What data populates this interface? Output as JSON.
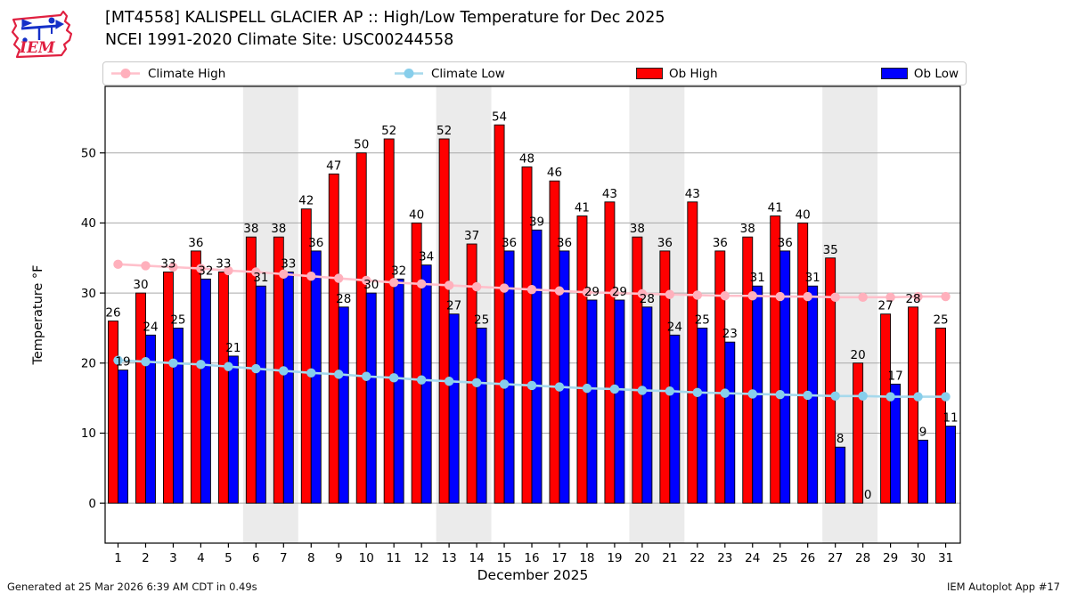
{
  "header": {
    "title_line1": "[MT4558] KALISPELL GLACIER AP :: High/Low Temperature for Dec 2025",
    "title_line2": "NCEI 1991-2020 Climate Site: USC00244558"
  },
  "logo": {
    "text": "IEM"
  },
  "legend": {
    "items": [
      {
        "label": "Climate High",
        "type": "line",
        "color": "#ffc0cb",
        "marker_color": "#ffb0bc"
      },
      {
        "label": "Climate Low",
        "type": "line",
        "color": "#a6d9ec",
        "marker_color": "#87ceeb"
      },
      {
        "label": "Ob High",
        "type": "bar",
        "color": "#ff0000"
      },
      {
        "label": "Ob Low",
        "type": "bar",
        "color": "#0000ff"
      }
    ]
  },
  "chart_data": {
    "type": "bar",
    "title": "[MT4558] KALISPELL GLACIER AP :: High/Low Temperature for Dec 2025",
    "subtitle": "NCEI 1991-2020 Climate Site: USC00244558",
    "xlabel": "December 2025",
    "ylabel": "Temperature °F",
    "x": [
      1,
      2,
      3,
      4,
      5,
      6,
      7,
      8,
      9,
      10,
      11,
      12,
      13,
      14,
      15,
      16,
      17,
      18,
      19,
      20,
      21,
      22,
      23,
      24,
      25,
      26,
      27,
      28,
      29,
      30,
      31
    ],
    "yticks": [
      0,
      10,
      20,
      30,
      40,
      50
    ],
    "ylim": [
      -5.7,
      59.5
    ],
    "grid": true,
    "legend_position": "top",
    "band_color": "#ebebeb",
    "weekend_bands_days": [
      [
        6,
        7
      ],
      [
        13,
        14
      ],
      [
        20,
        21
      ],
      [
        27,
        28
      ]
    ],
    "series": [
      {
        "name": "Ob High",
        "type": "bar",
        "color": "#ff0000",
        "values": [
          26,
          30,
          33,
          36,
          33,
          38,
          38,
          42,
          47,
          50,
          52,
          40,
          52,
          37,
          54,
          48,
          46,
          41,
          43,
          38,
          36,
          43,
          36,
          38,
          41,
          40,
          35,
          20,
          27,
          28,
          25
        ]
      },
      {
        "name": "Ob Low",
        "type": "bar",
        "color": "#0000ff",
        "values": [
          19,
          24,
          25,
          32,
          21,
          31,
          33,
          36,
          28,
          30,
          32,
          34,
          27,
          25,
          36,
          39,
          36,
          29,
          29,
          28,
          24,
          25,
          23,
          31,
          36,
          31,
          8,
          0,
          17,
          9,
          11
        ]
      },
      {
        "name": "Climate High",
        "type": "line",
        "color": "#ffc0cb",
        "marker_color": "#ffb0bc",
        "values": [
          34.1,
          33.9,
          33.7,
          33.5,
          33.2,
          33.0,
          32.7,
          32.4,
          32.1,
          31.8,
          31.5,
          31.3,
          31.1,
          30.9,
          30.7,
          30.5,
          30.3,
          30.1,
          30.0,
          29.9,
          29.8,
          29.7,
          29.6,
          29.6,
          29.5,
          29.5,
          29.4,
          29.4,
          29.4,
          29.5,
          29.5
        ]
      },
      {
        "name": "Climate Low",
        "type": "line",
        "color": "#a6d9ec",
        "marker_color": "#87ceeb",
        "values": [
          20.4,
          20.2,
          20.0,
          19.8,
          19.5,
          19.2,
          18.9,
          18.6,
          18.4,
          18.1,
          17.9,
          17.6,
          17.4,
          17.2,
          17.0,
          16.8,
          16.6,
          16.4,
          16.3,
          16.1,
          16.0,
          15.8,
          15.7,
          15.6,
          15.5,
          15.4,
          15.3,
          15.3,
          15.2,
          15.2,
          15.2
        ]
      }
    ]
  },
  "footer": {
    "left": "Generated at 25 Mar 2026 6:39 AM CDT in 0.49s",
    "right": "IEM Autoplot App #17"
  }
}
